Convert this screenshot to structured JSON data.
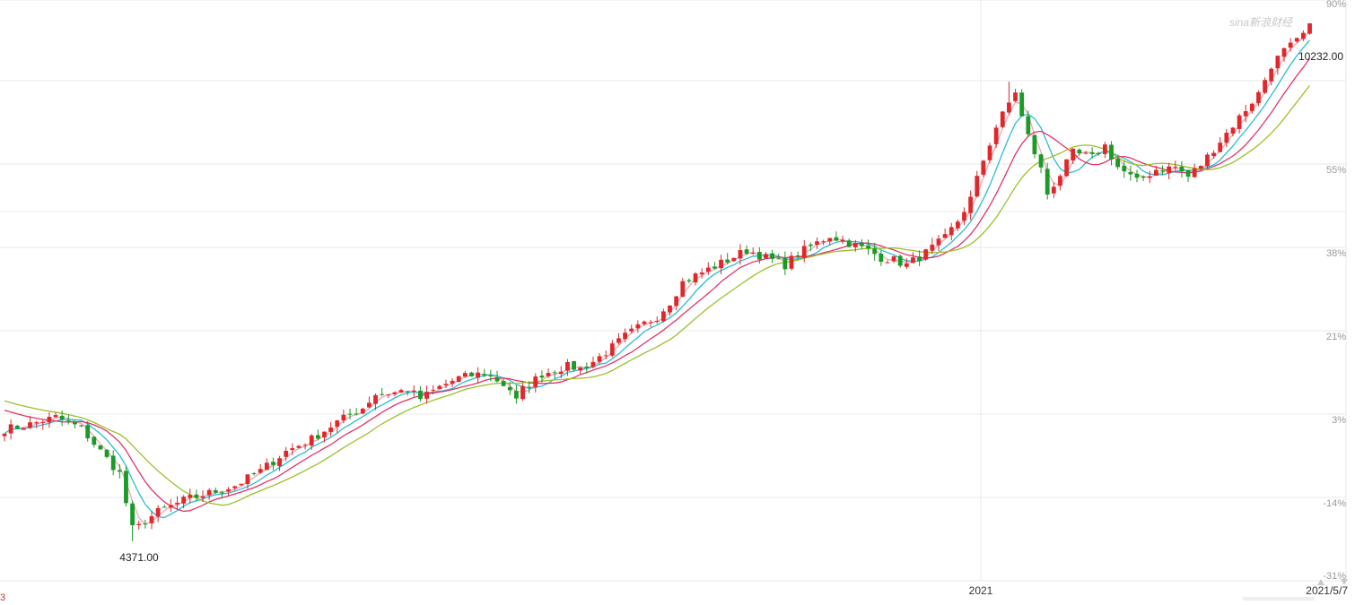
{
  "watermark": "sina新浪财经",
  "left_edge_label": "3",
  "chart_data": {
    "type": "candlestick",
    "title": "",
    "ylabel": "",
    "xlabel": "",
    "y_unit": "percent",
    "ylim": [
      -31,
      90
    ],
    "y_ticks": [
      "90%",
      "55%",
      "38%",
      "21%",
      "3%",
      "-14%",
      "-31%"
    ],
    "x_ticks": [
      "2021",
      "2021/5/7"
    ],
    "grid": true,
    "annotations": [
      {
        "text": "10232.00",
        "type": "max"
      },
      {
        "text": "4371.00",
        "type": "min"
      }
    ],
    "colors": {
      "up": "#e0282b",
      "down": "#1a9a26",
      "ma1": "#f0a5b4",
      "ma2": "#2bbcd4",
      "ma3": "#e2336b",
      "ma4": "#9ac12a",
      "grid": "#e9e9e9"
    },
    "close_path_pct": [
      [
        0,
        1.0
      ],
      [
        4,
        2.0
      ],
      [
        8,
        3.5
      ],
      [
        12,
        1.2
      ],
      [
        15,
        -3.5
      ],
      [
        18,
        -8.0
      ],
      [
        20,
        -20.0
      ],
      [
        21,
        -19.5
      ],
      [
        24,
        -16.0
      ],
      [
        28,
        -13.5
      ],
      [
        32,
        -12.0
      ],
      [
        36,
        -10.5
      ],
      [
        40,
        -7.5
      ],
      [
        44,
        -3.5
      ],
      [
        48,
        -1.0
      ],
      [
        52,
        2.5
      ],
      [
        56,
        5.5
      ],
      [
        58,
        8.5
      ],
      [
        61,
        8.8
      ],
      [
        63,
        9.5
      ],
      [
        65,
        7.5
      ],
      [
        68,
        10.0
      ],
      [
        71,
        12.0
      ],
      [
        73,
        12.5
      ],
      [
        75,
        13.0
      ],
      [
        77,
        11.5
      ],
      [
        79,
        9.5
      ],
      [
        80,
        7.0
      ],
      [
        81,
        9.5
      ],
      [
        84,
        12.8
      ],
      [
        88,
        14.5
      ],
      [
        90,
        14.0
      ],
      [
        92,
        15.5
      ],
      [
        94,
        17.5
      ],
      [
        97,
        21.0
      ],
      [
        100,
        23.5
      ],
      [
        102,
        25.0
      ],
      [
        104,
        28.0
      ],
      [
        106,
        32.0
      ],
      [
        109,
        34.0
      ],
      [
        113,
        36.5
      ],
      [
        116,
        38.5
      ],
      [
        119,
        37.0
      ],
      [
        122,
        35.5
      ],
      [
        124,
        37.8
      ],
      [
        127,
        40.0
      ],
      [
        129,
        41.5
      ],
      [
        132,
        40.0
      ],
      [
        135,
        38.5
      ],
      [
        137,
        37.0
      ],
      [
        139,
        36.5
      ],
      [
        141,
        35.5
      ],
      [
        144,
        38.0
      ],
      [
        147,
        41.0
      ],
      [
        149,
        44.5
      ],
      [
        151,
        49.0
      ],
      [
        153,
        57.0
      ],
      [
        155,
        64.0
      ],
      [
        157,
        69.0
      ],
      [
        158,
        71.5
      ],
      [
        159,
        66.0
      ],
      [
        160,
        62.0
      ],
      [
        162,
        55.0
      ],
      [
        163,
        50.0
      ],
      [
        165,
        54.0
      ],
      [
        167,
        58.5
      ],
      [
        170,
        57.5
      ],
      [
        172,
        60.0
      ],
      [
        174,
        55.5
      ],
      [
        177,
        52.5
      ],
      [
        180,
        55.0
      ],
      [
        183,
        55.5
      ],
      [
        185,
        53.5
      ],
      [
        187,
        56.0
      ],
      [
        190,
        61.0
      ],
      [
        193,
        66.0
      ],
      [
        196,
        71.0
      ],
      [
        198,
        77.0
      ],
      [
        200,
        80.0
      ],
      [
        202,
        82.0
      ],
      [
        204,
        85.0
      ]
    ]
  }
}
